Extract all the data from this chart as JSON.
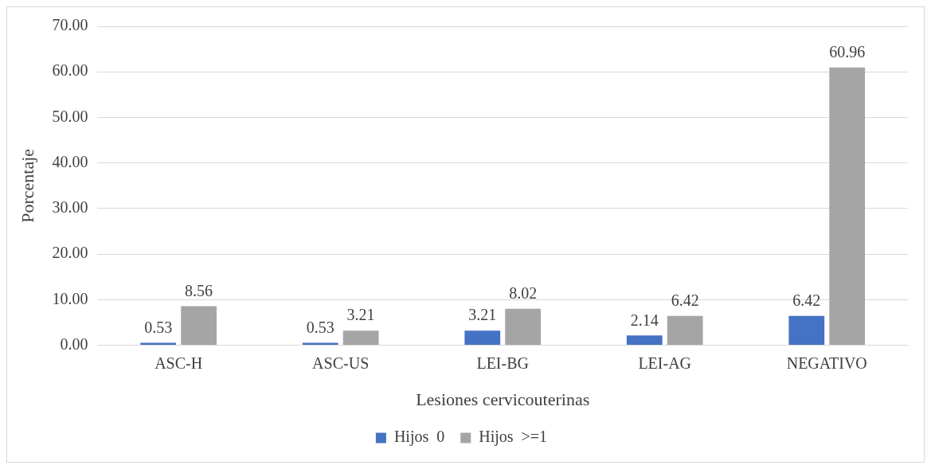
{
  "chart_data": {
    "type": "bar",
    "xlabel": "Lesiones cervicouterinas",
    "ylabel": "Porcentaje",
    "categories": [
      "ASC-H",
      "ASC-US",
      "LEI-BG",
      "LEI-AG",
      "NEGATIVO"
    ],
    "series": [
      {
        "name": "Hijos  0",
        "color": "#4472c4",
        "values": [
          0.53,
          0.53,
          3.21,
          2.14,
          6.42
        ]
      },
      {
        "name": "Hijos  >=1",
        "color": "#a5a5a5",
        "values": [
          8.56,
          3.21,
          8.02,
          6.42,
          60.96
        ]
      }
    ],
    "ylim": [
      0,
      70
    ],
    "yticks": [
      {
        "value": 0,
        "label": "0.00"
      },
      {
        "value": 10,
        "label": "10.00"
      },
      {
        "value": 20,
        "label": "20.00"
      },
      {
        "value": 30,
        "label": "30.00"
      },
      {
        "value": 40,
        "label": "40.00"
      },
      {
        "value": 50,
        "label": "50.00"
      },
      {
        "value": 60,
        "label": "60.00"
      },
      {
        "value": 70,
        "label": "70.00"
      }
    ],
    "grid": "y",
    "legend": "bottom",
    "data_labels": true
  }
}
